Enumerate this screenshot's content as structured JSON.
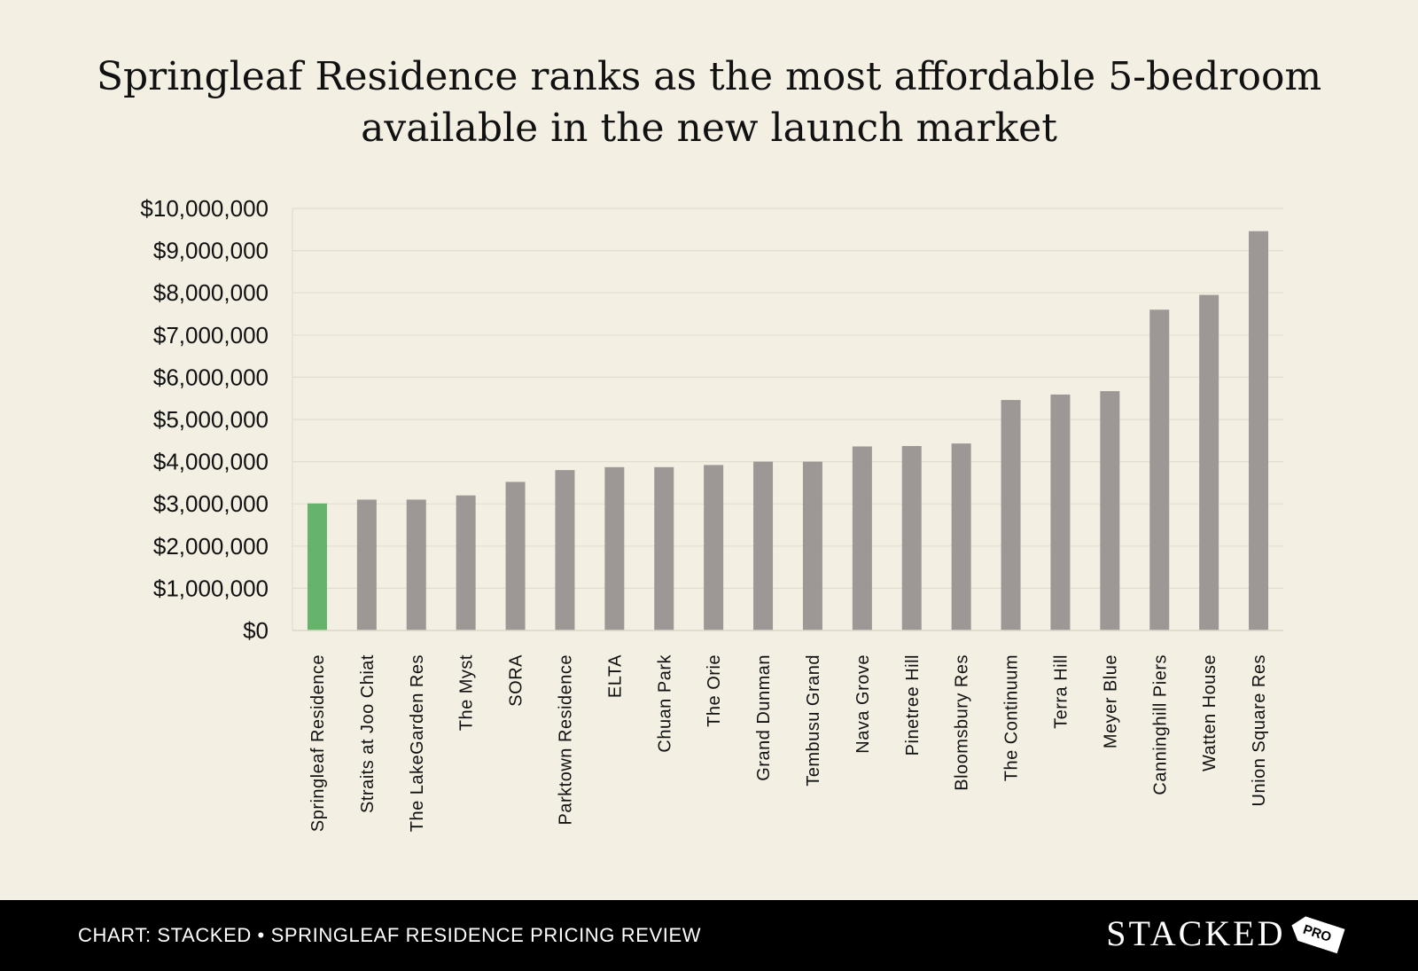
{
  "chart_data": {
    "type": "bar",
    "title_lines": [
      "Springleaf Residence ranks as the most affordable 5-bedroom",
      "available in the new launch market"
    ],
    "xlabel": "",
    "ylabel": "",
    "ylim": [
      0,
      10000000
    ],
    "yticks": [
      0,
      1000000,
      2000000,
      3000000,
      4000000,
      5000000,
      6000000,
      7000000,
      8000000,
      9000000,
      10000000
    ],
    "ytick_labels": [
      "$0",
      "$1,000,000",
      "$2,000,000",
      "$3,000,000",
      "$4,000,000",
      "$5,000,000",
      "$6,000,000",
      "$7,000,000",
      "$8,000,000",
      "$9,000,000",
      "$10,000,000"
    ],
    "grid": true,
    "highlight_color": "#66b36c",
    "bar_color": "#9d9795",
    "highlight_index": 0,
    "categories": [
      "Springleaf Residence",
      "Straits at Joo Chiat",
      "The LakeGarden Res",
      "The Myst",
      "SORA",
      "Parktown Residence",
      "ELTA",
      "Chuan Park",
      "The Orie",
      "Grand Dunman",
      "Tembusu Grand",
      "Nava Grove",
      "Pinetree Hill",
      "Bloomsbury Res",
      "The Continuum",
      "Terra Hill",
      "Meyer Blue",
      "Canninghill Piers",
      "Watten House",
      "Union Square Res"
    ],
    "values": [
      3010000,
      3100000,
      3100000,
      3200000,
      3520000,
      3800000,
      3870000,
      3870000,
      3920000,
      4000000,
      4000000,
      4360000,
      4370000,
      4430000,
      5460000,
      5590000,
      5670000,
      7600000,
      7950000,
      9460000
    ]
  },
  "footer": {
    "credit": "CHART: STACKED • SPRINGLEAF RESIDENCE PRICING REVIEW",
    "brand": "STACKED",
    "badge": "PRO"
  }
}
